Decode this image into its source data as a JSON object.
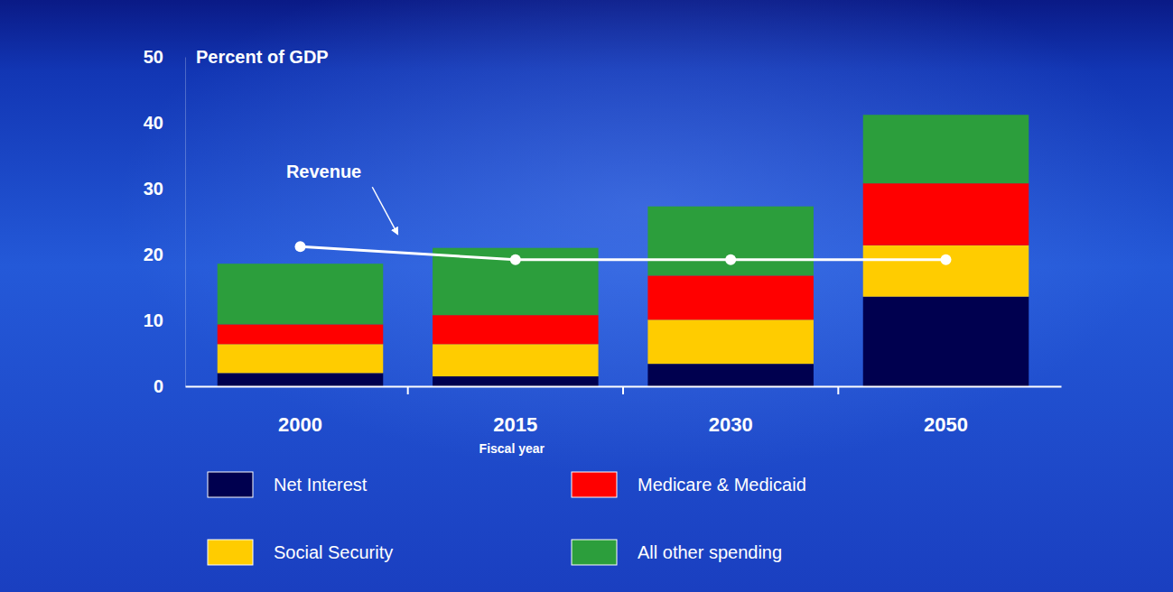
{
  "chart_data": {
    "type": "bar",
    "stacked": true,
    "y_label": "Percent of GDP",
    "x_label": "Fiscal year",
    "categories": [
      "2000",
      "2015",
      "2030",
      "2050"
    ],
    "series": [
      {
        "name": "Net Interest",
        "color": "#00004f",
        "values": [
          2.0,
          1.5,
          3.4,
          13.6
        ]
      },
      {
        "name": "Social Security",
        "color": "#ffcc00",
        "values": [
          4.4,
          4.9,
          6.7,
          7.8
        ]
      },
      {
        "name": "Medicare & Medicaid",
        "color": "#ff0000",
        "values": [
          3.0,
          4.4,
          6.7,
          9.4
        ]
      },
      {
        "name": "All other spending",
        "color": "#2c9e3c",
        "values": [
          9.2,
          10.2,
          10.5,
          10.4
        ]
      },
      {
        "name": "Revenue",
        "type": "line",
        "color": "#ffffff",
        "marker": "circle",
        "values": [
          21.2,
          19.2,
          19.2,
          19.2
        ]
      }
    ],
    "ylim": [
      0,
      50
    ],
    "yticks": [
      0,
      10,
      20,
      30,
      40,
      50
    ],
    "grid": false,
    "legend": "bottom"
  }
}
